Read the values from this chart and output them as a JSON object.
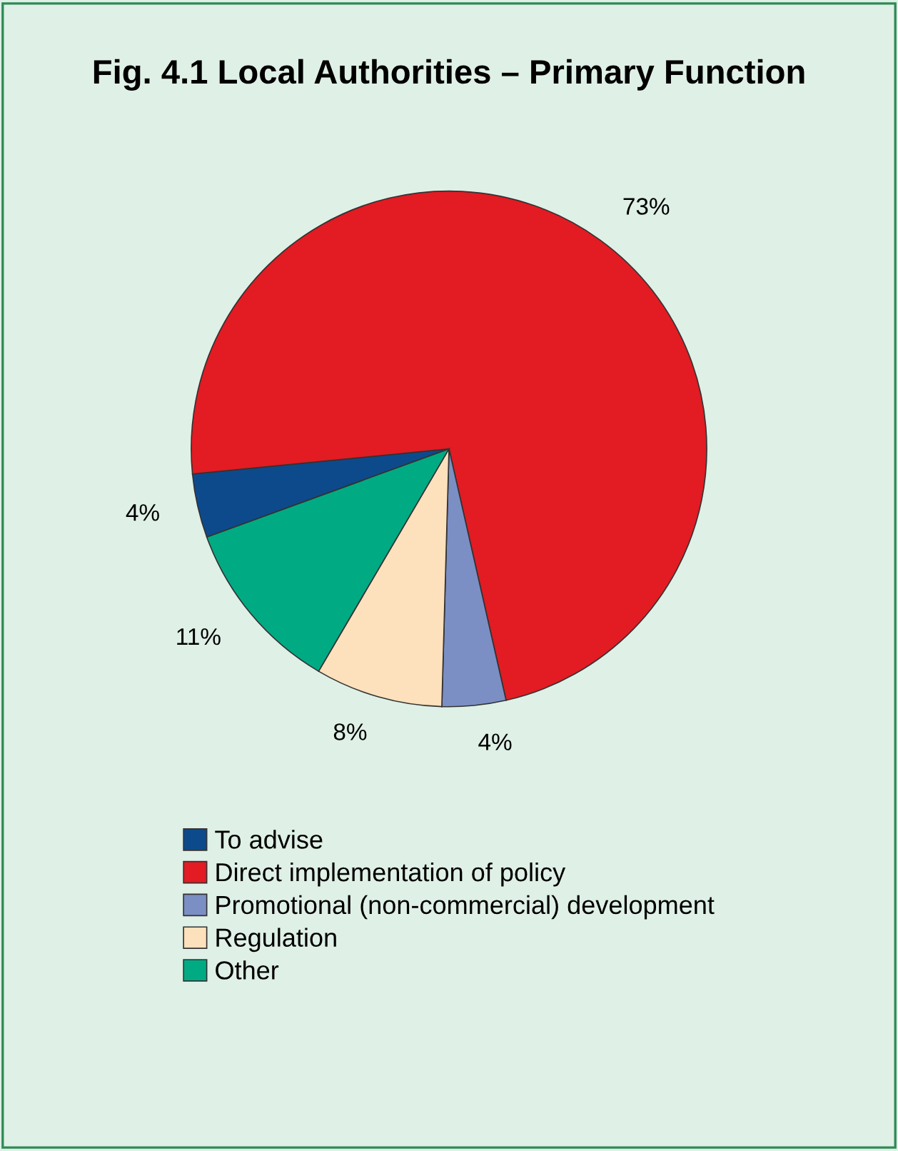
{
  "chart_data": {
    "type": "pie",
    "title": "Fig. 4.1 Local Authorities – Primary Function",
    "categories": [
      "To advise",
      "Direct implementation of policy",
      "Promotional (non-commercial) development",
      "Regulation",
      "Other"
    ],
    "values": [
      4,
      73,
      4,
      8,
      11
    ],
    "colors": [
      "#0d4a8c",
      "#e31b23",
      "#7b8fc4",
      "#fde0bc",
      "#00ab84"
    ],
    "value_labels": [
      "4%",
      "73%",
      "4%",
      "8%",
      "11%"
    ],
    "legend": "bottom"
  }
}
